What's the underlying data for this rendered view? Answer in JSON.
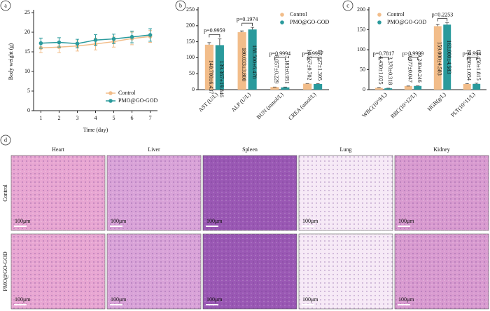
{
  "chart_data": [
    {
      "type": "line",
      "panel": "a",
      "x": [
        1,
        2,
        3,
        4,
        5,
        6,
        7
      ],
      "xlim": [
        0.6,
        7.4
      ],
      "xticks": [
        1,
        2,
        3,
        4,
        5,
        6,
        7
      ],
      "ylim": [
        0,
        25
      ],
      "yticks": [
        0,
        5,
        10,
        15,
        20,
        25
      ],
      "xlabel": "Time (day)",
      "ylabel": "Body weight (g)",
      "legend": "lower right",
      "series": [
        {
          "name": "Control",
          "color": "#f2bd8a",
          "values": [
            16,
            16.2,
            16.5,
            17,
            17.6,
            18.4,
            18.9
          ],
          "errors": [
            1.2,
            1.4,
            1.3,
            1.5,
            1.4,
            1.6,
            1.5
          ]
        },
        {
          "name": "PMO@GO-GOD",
          "color": "#2a9a9c",
          "values": [
            17.2,
            17.4,
            17.1,
            18,
            18.3,
            18.8,
            19.3
          ],
          "errors": [
            1.3,
            1.2,
            1.1,
            1.4,
            1.2,
            1.5,
            1.6
          ]
        }
      ]
    },
    {
      "type": "bar",
      "panel": "b",
      "categories": [
        "AST (U/L)",
        "ALP (U/L)",
        "BUN (mmol/L)",
        "CREA (umol/L)"
      ],
      "ylim": [
        0,
        250
      ],
      "yticks": [
        0,
        50,
        100,
        150,
        200,
        250
      ],
      "legend": "upper right",
      "p_values": [
        "p=0.9959",
        "p=0.1974",
        "p=0.9994",
        "p=0.9997"
      ],
      "series": [
        {
          "name": "Control",
          "color": "#f2bd8a",
          "values": [
            140.7,
            180.033,
            8.057,
            18.567
          ],
          "errors": [
            6.437,
            3.8,
            0.229,
            0.702
          ],
          "value_labels": [
            "140.700±6.437",
            "180.033±3.800",
            "8.057±0.229",
            "18.567±0.702"
          ]
        },
        {
          "name": "PMO@GO-GOD",
          "color": "#2a9a9c",
          "values": [
            139.367,
            188.5,
            7.183,
            17.627
          ],
          "errors": [
            19.846,
            6.478,
            0.951,
            1.305
          ],
          "value_labels": [
            "139.367±19.846",
            "188.500±6.478",
            "7.183±0.951",
            "17.627±1.305"
          ]
        }
      ]
    },
    {
      "type": "bar",
      "panel": "c",
      "categories": [
        "WBC(10^9/L)",
        "RBC(10^12/L)",
        "HGB(g/L)",
        "PLT(10^11/L)"
      ],
      "ylim": [
        0,
        200
      ],
      "yticks": [
        0,
        50,
        100,
        150,
        200
      ],
      "legend": "upper left",
      "p_values": [
        "p=0.7817",
        "p>0.9999",
        "p=0.2253",
        "p=0.994"
      ],
      "series": [
        {
          "name": "Control",
          "color": "#f2bd8a",
          "values": [
            4.43,
            9.077,
            159,
            14.05
          ],
          "errors": [
            1.025,
            0.047,
            4.583,
            1.054
          ],
          "value_labels": [
            "4.430±1.025",
            "9.077±0.047",
            "159.000±4.583",
            "14.050±1.054"
          ]
        },
        {
          "name": "PMO@GO-GOD",
          "color": "#2a9a9c",
          "values": [
            3.37,
            9.24,
            163,
            14.45
          ],
          "errors": [
            0.318,
            0.246,
            4.583,
            1.815
          ],
          "value_labels": [
            "3.370±0.318",
            "9.240±0.246",
            "163.000±4.583",
            "14.450±1.815"
          ]
        }
      ]
    }
  ],
  "histology": {
    "panel": "d",
    "columns": [
      "Heart",
      "Liver",
      "Spleen",
      "Lung",
      "Kidney"
    ],
    "rows": [
      "Control",
      "PMO@GO-GOD"
    ],
    "scale_bar": "100μm"
  }
}
